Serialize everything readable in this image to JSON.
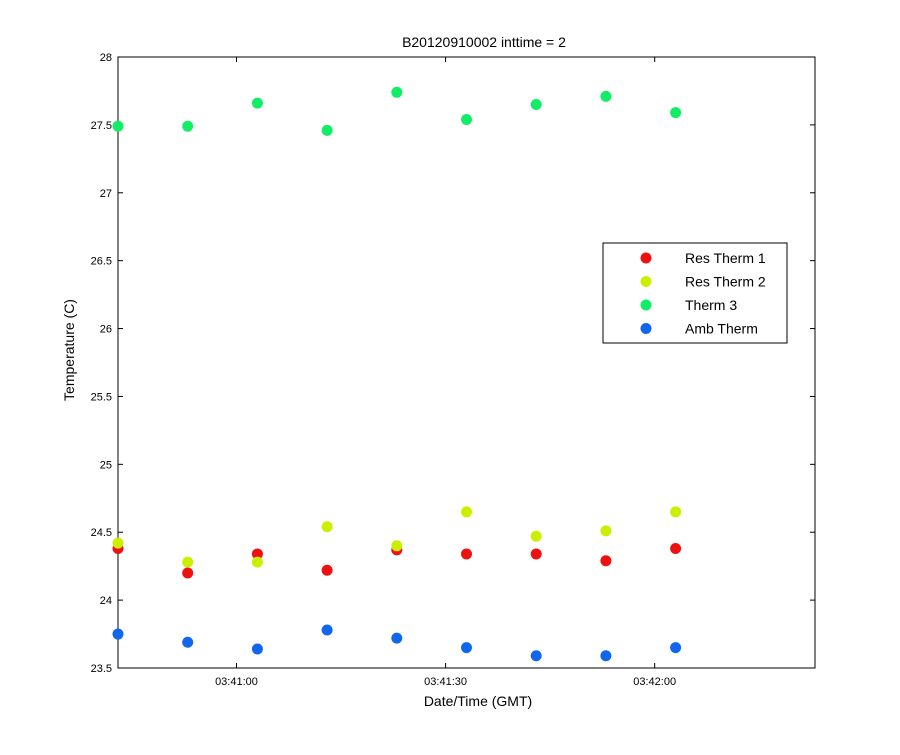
{
  "chart_data": {
    "type": "scatter",
    "title": "B20120910002 inttime = 2",
    "xlabel": "Date/Time (GMT)",
    "ylabel": "Temperature (C)",
    "x_unit": "time (GMT)",
    "xlim": [
      "03:40:43",
      "03:42:23"
    ],
    "ylim": [
      23.5,
      28
    ],
    "x_ticks": [
      "03:41:00",
      "03:41:30",
      "03:42:00"
    ],
    "y_ticks": [
      "23.5",
      "24",
      "24.5",
      "25",
      "25.5",
      "26",
      "26.5",
      "27",
      "27.5",
      "28"
    ],
    "grid": false,
    "legend_position": "right",
    "x": [
      "03:40:43",
      "03:40:53",
      "03:41:03",
      "03:41:13",
      "03:41:23",
      "03:41:33",
      "03:41:43",
      "03:41:53",
      "03:42:03"
    ],
    "series": [
      {
        "name": "Res Therm 1",
        "color": "#ee1111",
        "values": [
          24.38,
          24.2,
          24.34,
          24.22,
          24.37,
          24.34,
          24.34,
          24.29,
          24.38
        ]
      },
      {
        "name": "Res Therm 2",
        "color": "#ccee00",
        "values": [
          24.42,
          24.28,
          24.28,
          24.54,
          24.4,
          24.65,
          24.47,
          24.51,
          24.65
        ]
      },
      {
        "name": "Therm 3",
        "color": "#11ee66",
        "values": [
          27.49,
          27.49,
          27.66,
          27.46,
          27.74,
          27.54,
          27.65,
          27.71,
          27.59
        ]
      },
      {
        "name": "Amb Therm",
        "color": "#1166ee",
        "values": [
          23.75,
          23.69,
          23.64,
          23.78,
          23.72,
          23.65,
          23.59,
          23.59,
          23.65
        ]
      }
    ]
  }
}
